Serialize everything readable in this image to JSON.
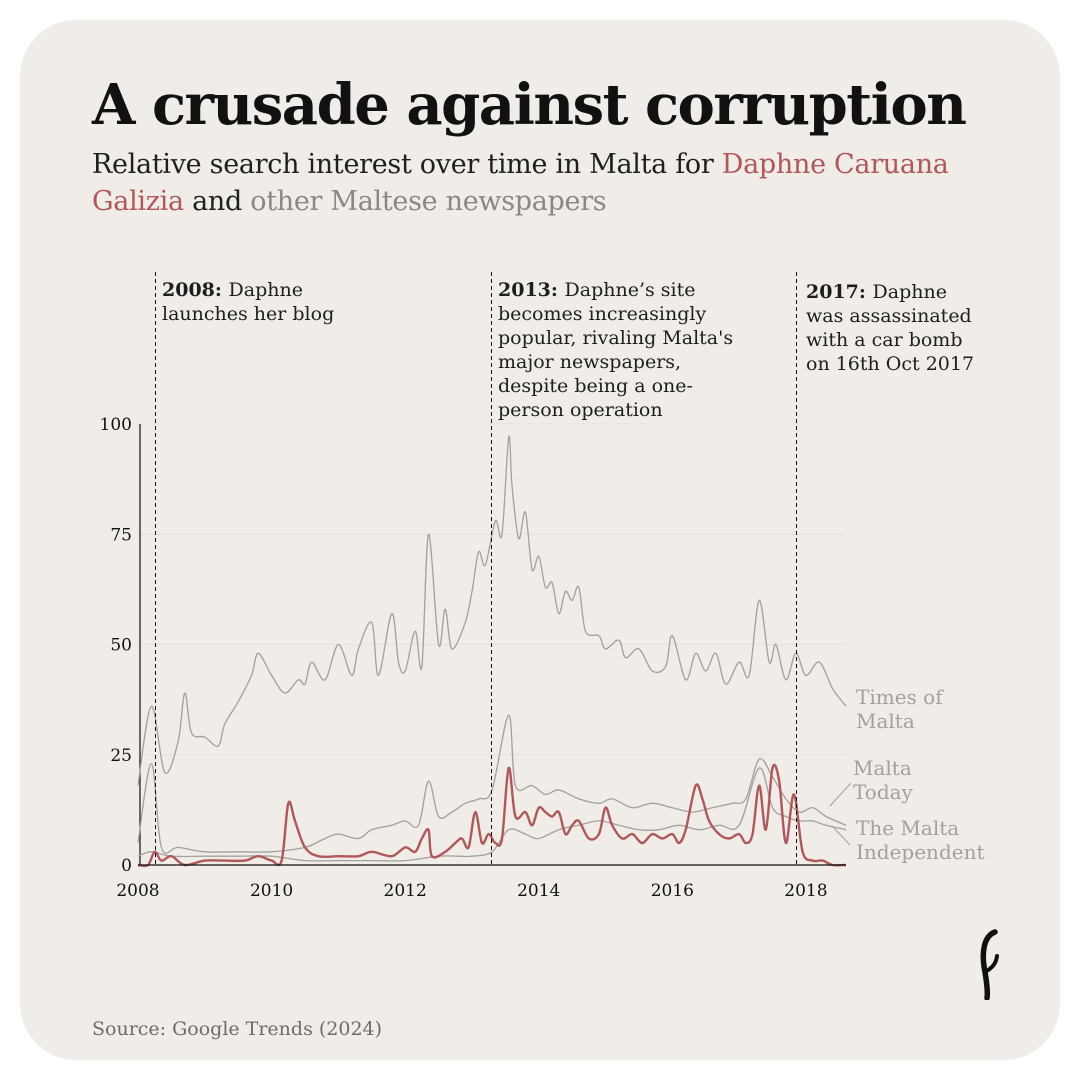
{
  "header": {
    "title": "A crusade against corruption",
    "subtitle_pre": "Relative search interest over time in Malta for ",
    "subtitle_red": "Daphne Caruana Galizia",
    "subtitle_mid": " and ",
    "subtitle_grey": "other Maltese newspapers"
  },
  "footer": {
    "source": "Source: Google Trends (2024)"
  },
  "colors": {
    "background": "#f0ece7",
    "daphne": "#b0575a",
    "newspapers": "#a3a19d",
    "text": "#111111"
  },
  "chart_data": {
    "type": "line",
    "title": "A crusade against corruption",
    "xlabel": "",
    "ylabel": "Relative search interest",
    "xlim": [
      2008.0,
      2018.6
    ],
    "ylim": [
      0,
      100
    ],
    "x_ticks": [
      2008,
      2010,
      2012,
      2014,
      2016,
      2018
    ],
    "y_ticks": [
      0,
      25,
      50,
      75,
      100
    ],
    "annotations": [
      {
        "x": 2008.2,
        "year_label": "2008:",
        "lines": [
          "Daphne",
          "launches her blog"
        ]
      },
      {
        "x": 2013.25,
        "year_label": "2013:",
        "lines": [
          "Daphne’s site",
          "becomes increasingly",
          "popular, rivaling Malta's",
          "major newspapers,",
          "despite being a one-",
          "person operation"
        ]
      },
      {
        "x": 2017.8,
        "year_label": "2017:",
        "lines": [
          "Daphne",
          "was assassinated",
          "with a car bomb",
          "on 16th Oct 2017"
        ]
      }
    ],
    "series": [
      {
        "name": "Times of Malta",
        "label_lines": [
          "Times of",
          "Malta"
        ],
        "points": [
          [
            2008.0,
            18
          ],
          [
            2008.2,
            36
          ],
          [
            2008.4,
            21
          ],
          [
            2008.6,
            28
          ],
          [
            2008.7,
            39
          ],
          [
            2008.8,
            30
          ],
          [
            2009.0,
            29
          ],
          [
            2009.2,
            27
          ],
          [
            2009.3,
            32
          ],
          [
            2009.5,
            37
          ],
          [
            2009.7,
            43
          ],
          [
            2009.8,
            48
          ],
          [
            2010.0,
            43
          ],
          [
            2010.2,
            39
          ],
          [
            2010.4,
            42
          ],
          [
            2010.5,
            41
          ],
          [
            2010.6,
            46
          ],
          [
            2010.8,
            42
          ],
          [
            2011.0,
            50
          ],
          [
            2011.2,
            43
          ],
          [
            2011.3,
            49
          ],
          [
            2011.5,
            55
          ],
          [
            2011.6,
            43
          ],
          [
            2011.8,
            57
          ],
          [
            2011.9,
            46
          ],
          [
            2012.0,
            44
          ],
          [
            2012.15,
            53
          ],
          [
            2012.25,
            45
          ],
          [
            2012.35,
            75
          ],
          [
            2012.5,
            50
          ],
          [
            2012.6,
            58
          ],
          [
            2012.7,
            49
          ],
          [
            2012.9,
            55
          ],
          [
            2013.0,
            62
          ],
          [
            2013.1,
            71
          ],
          [
            2013.2,
            68
          ],
          [
            2013.35,
            78
          ],
          [
            2013.45,
            75
          ],
          [
            2013.55,
            97
          ],
          [
            2013.6,
            86
          ],
          [
            2013.7,
            74
          ],
          [
            2013.8,
            80
          ],
          [
            2013.9,
            67
          ],
          [
            2014.0,
            70
          ],
          [
            2014.1,
            63
          ],
          [
            2014.2,
            64
          ],
          [
            2014.3,
            57
          ],
          [
            2014.4,
            62
          ],
          [
            2014.5,
            60
          ],
          [
            2014.6,
            63
          ],
          [
            2014.7,
            53
          ],
          [
            2014.9,
            52
          ],
          [
            2015.0,
            49
          ],
          [
            2015.2,
            51
          ],
          [
            2015.3,
            47
          ],
          [
            2015.5,
            49
          ],
          [
            2015.7,
            44
          ],
          [
            2015.9,
            45
          ],
          [
            2016.0,
            52
          ],
          [
            2016.2,
            42
          ],
          [
            2016.35,
            48
          ],
          [
            2016.5,
            44
          ],
          [
            2016.65,
            48
          ],
          [
            2016.8,
            41
          ],
          [
            2017.0,
            46
          ],
          [
            2017.15,
            43
          ],
          [
            2017.3,
            60
          ],
          [
            2017.45,
            46
          ],
          [
            2017.55,
            50
          ],
          [
            2017.7,
            42
          ],
          [
            2017.85,
            48
          ],
          [
            2018.0,
            43
          ],
          [
            2018.2,
            46
          ],
          [
            2018.4,
            40
          ],
          [
            2018.6,
            36
          ]
        ]
      },
      {
        "name": "Malta Today",
        "label_lines": [
          "Malta",
          "Today"
        ],
        "points": [
          [
            2008.0,
            5
          ],
          [
            2008.2,
            23
          ],
          [
            2008.35,
            4
          ],
          [
            2008.6,
            4
          ],
          [
            2009.0,
            3
          ],
          [
            2009.5,
            3
          ],
          [
            2010.0,
            3
          ],
          [
            2010.5,
            4
          ],
          [
            2010.8,
            6
          ],
          [
            2011.0,
            7
          ],
          [
            2011.3,
            6
          ],
          [
            2011.5,
            8
          ],
          [
            2011.8,
            9
          ],
          [
            2012.0,
            10
          ],
          [
            2012.2,
            9
          ],
          [
            2012.35,
            19
          ],
          [
            2012.5,
            11
          ],
          [
            2012.7,
            12
          ],
          [
            2012.9,
            14
          ],
          [
            2013.1,
            15
          ],
          [
            2013.3,
            17
          ],
          [
            2013.55,
            34
          ],
          [
            2013.65,
            18
          ],
          [
            2013.9,
            18
          ],
          [
            2014.1,
            16
          ],
          [
            2014.3,
            17
          ],
          [
            2014.6,
            15
          ],
          [
            2014.9,
            14
          ],
          [
            2015.1,
            15
          ],
          [
            2015.4,
            13
          ],
          [
            2015.7,
            14
          ],
          [
            2016.0,
            13
          ],
          [
            2016.3,
            12
          ],
          [
            2016.6,
            13
          ],
          [
            2016.9,
            14
          ],
          [
            2017.1,
            15
          ],
          [
            2017.3,
            24
          ],
          [
            2017.5,
            20
          ],
          [
            2017.7,
            15
          ],
          [
            2017.9,
            12
          ],
          [
            2018.1,
            13
          ],
          [
            2018.3,
            11
          ],
          [
            2018.6,
            9
          ]
        ]
      },
      {
        "name": "The Malta Independent",
        "label_lines": [
          "The Malta",
          "Independent"
        ],
        "points": [
          [
            2008.0,
            2
          ],
          [
            2008.2,
            3
          ],
          [
            2008.5,
            2
          ],
          [
            2009.0,
            2
          ],
          [
            2009.5,
            2
          ],
          [
            2010.0,
            2
          ],
          [
            2010.5,
            1
          ],
          [
            2011.0,
            1
          ],
          [
            2011.5,
            1
          ],
          [
            2012.0,
            1
          ],
          [
            2012.5,
            2
          ],
          [
            2012.8,
            2
          ],
          [
            2013.0,
            2
          ],
          [
            2013.3,
            3
          ],
          [
            2013.55,
            8
          ],
          [
            2013.8,
            7
          ],
          [
            2014.0,
            6
          ],
          [
            2014.3,
            8
          ],
          [
            2014.6,
            9
          ],
          [
            2014.9,
            10
          ],
          [
            2015.2,
            9
          ],
          [
            2015.5,
            8
          ],
          [
            2015.8,
            8
          ],
          [
            2016.1,
            9
          ],
          [
            2016.4,
            8
          ],
          [
            2016.7,
            9
          ],
          [
            2017.0,
            9
          ],
          [
            2017.3,
            22
          ],
          [
            2017.5,
            13
          ],
          [
            2017.7,
            11
          ],
          [
            2017.9,
            10
          ],
          [
            2018.1,
            10
          ],
          [
            2018.3,
            9
          ],
          [
            2018.6,
            8
          ]
        ]
      },
      {
        "name": "Daphne Caruana Galizia",
        "label_lines": [],
        "points": [
          [
            2008.0,
            0
          ],
          [
            2008.15,
            0
          ],
          [
            2008.25,
            3
          ],
          [
            2008.35,
            1
          ],
          [
            2008.5,
            2
          ],
          [
            2008.7,
            0
          ],
          [
            2009.0,
            1
          ],
          [
            2009.3,
            1
          ],
          [
            2009.6,
            1
          ],
          [
            2009.8,
            2
          ],
          [
            2010.0,
            1
          ],
          [
            2010.15,
            1
          ],
          [
            2010.25,
            14
          ],
          [
            2010.35,
            10
          ],
          [
            2010.5,
            4
          ],
          [
            2010.7,
            2
          ],
          [
            2011.0,
            2
          ],
          [
            2011.3,
            2
          ],
          [
            2011.5,
            3
          ],
          [
            2011.8,
            2
          ],
          [
            2012.0,
            4
          ],
          [
            2012.15,
            3
          ],
          [
            2012.25,
            6
          ],
          [
            2012.35,
            8
          ],
          [
            2012.4,
            2
          ],
          [
            2012.6,
            3
          ],
          [
            2012.75,
            5
          ],
          [
            2012.85,
            6
          ],
          [
            2012.95,
            4
          ],
          [
            2013.05,
            12
          ],
          [
            2013.15,
            5
          ],
          [
            2013.25,
            7
          ],
          [
            2013.35,
            5
          ],
          [
            2013.45,
            6
          ],
          [
            2013.55,
            22
          ],
          [
            2013.65,
            11
          ],
          [
            2013.8,
            12
          ],
          [
            2013.9,
            9
          ],
          [
            2014.0,
            13
          ],
          [
            2014.1,
            12
          ],
          [
            2014.2,
            11
          ],
          [
            2014.3,
            12
          ],
          [
            2014.4,
            7
          ],
          [
            2014.5,
            9
          ],
          [
            2014.6,
            10
          ],
          [
            2014.75,
            6
          ],
          [
            2014.9,
            7
          ],
          [
            2015.0,
            13
          ],
          [
            2015.1,
            9
          ],
          [
            2015.25,
            6
          ],
          [
            2015.4,
            7
          ],
          [
            2015.55,
            5
          ],
          [
            2015.7,
            7
          ],
          [
            2015.85,
            6
          ],
          [
            2016.0,
            7
          ],
          [
            2016.1,
            5
          ],
          [
            2016.2,
            8
          ],
          [
            2016.35,
            18
          ],
          [
            2016.45,
            15
          ],
          [
            2016.55,
            10
          ],
          [
            2016.7,
            7
          ],
          [
            2016.85,
            6
          ],
          [
            2017.0,
            7
          ],
          [
            2017.1,
            5
          ],
          [
            2017.2,
            7
          ],
          [
            2017.3,
            18
          ],
          [
            2017.4,
            8
          ],
          [
            2017.5,
            22
          ],
          [
            2017.6,
            19
          ],
          [
            2017.7,
            5
          ],
          [
            2017.82,
            16
          ],
          [
            2017.95,
            3
          ],
          [
            2018.1,
            1
          ],
          [
            2018.25,
            1
          ],
          [
            2018.4,
            0
          ],
          [
            2018.6,
            0
          ]
        ]
      }
    ]
  }
}
